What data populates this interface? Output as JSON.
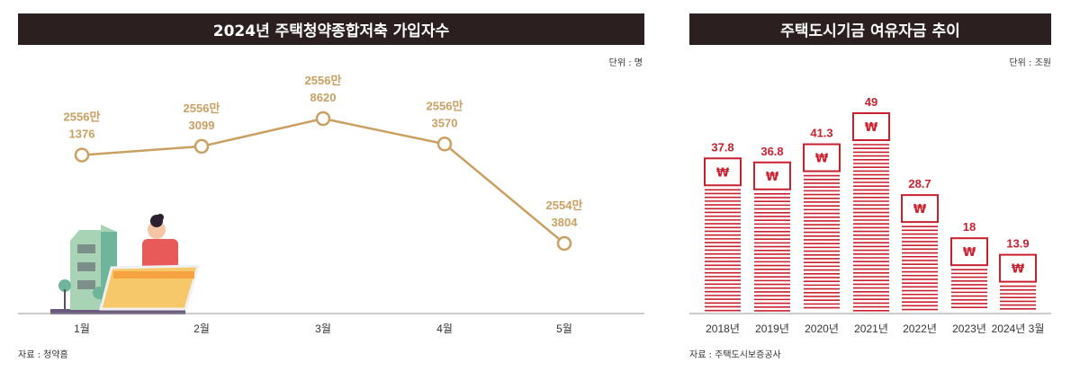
{
  "chart_data": [
    {
      "type": "line",
      "title": "2024년 주택청약종합저축 가입자수",
      "unit": "단위 : 명",
      "source": "자료 : 청약홈",
      "categories": [
        "1월",
        "2월",
        "3월",
        "4월",
        "5월"
      ],
      "values": [
        25561376,
        25563099,
        25568620,
        25563570,
        25543804
      ],
      "value_labels": [
        [
          "2556만",
          "1376"
        ],
        [
          "2556만",
          "3099"
        ],
        [
          "2556만",
          "8620"
        ],
        [
          "2556만",
          "3570"
        ],
        [
          "2554만",
          "3804"
        ]
      ],
      "color": "#c9a062"
    },
    {
      "type": "bar",
      "title": "주택도시기금 여유자금 추이",
      "unit": "단위 : 조원",
      "source": "자료 : 주택도시보증공사",
      "categories": [
        "2018년",
        "2019년",
        "2020년",
        "2021년",
        "2022년",
        "2023년",
        "2024년 3월"
      ],
      "values": [
        37.8,
        36.8,
        41.3,
        49,
        28.7,
        18,
        13.9
      ],
      "value_labels": [
        "37.8",
        "36.8",
        "41.3",
        "49",
        "28.7",
        "18",
        "13.9"
      ],
      "icon": "won-bill-stack-icon",
      "bill_symbol": "₩",
      "color": "#c8202f"
    }
  ]
}
